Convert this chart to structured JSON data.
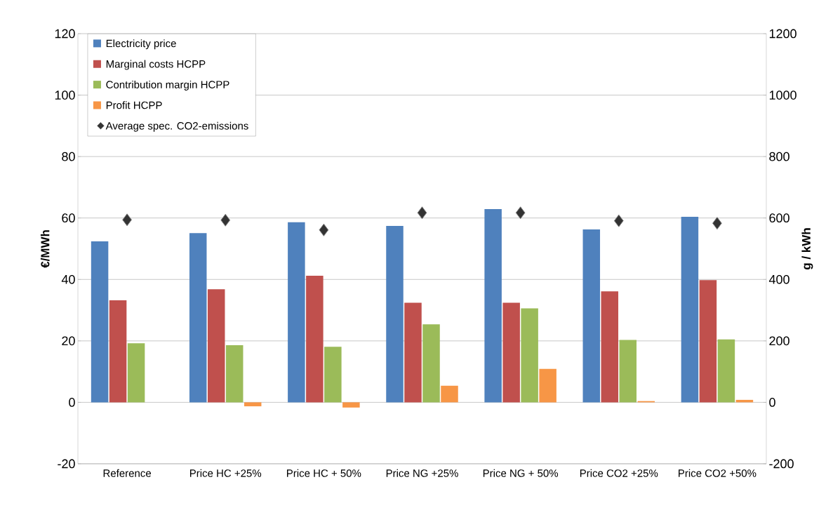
{
  "chart_data": {
    "type": "bar",
    "ylabel": "€/MWh",
    "y2label": "g / kWh",
    "categories": [
      "Reference",
      "Price HC +25%",
      "Price HC + 50%",
      "Price NG +25%",
      "Price NG + 50%",
      "Price CO2 +25%",
      "Price CO2 +50%"
    ],
    "series": [
      {
        "name": "Electricity price",
        "color": "#4f81bd",
        "values": [
          52.4,
          55.1,
          58.6,
          57.4,
          62.9,
          56.3,
          60.4
        ]
      },
      {
        "name": "Marginal costs HCPP",
        "color": "#c0504d",
        "values": [
          33.2,
          36.8,
          41.2,
          32.4,
          32.4,
          36.1,
          39.8
        ]
      },
      {
        "name": "Contribution margin HCPP",
        "color": "#9bbb59",
        "values": [
          19.2,
          18.6,
          18.1,
          25.4,
          30.6,
          20.3,
          20.5
        ]
      },
      {
        "name": "Profit HCPP",
        "color": "#f79646",
        "values": [
          null,
          -1.3,
          -1.7,
          5.4,
          10.9,
          0.4,
          0.8
        ]
      },
      {
        "name": "Average spec. CO2-emissions",
        "type": "scatter",
        "axis": "y2",
        "marker": "diamond",
        "color": "#333333",
        "values": [
          594,
          593,
          561,
          617,
          617,
          591,
          583
        ]
      }
    ],
    "ylim": [
      -20,
      120
    ],
    "yticks": [
      -20,
      0,
      20,
      40,
      60,
      80,
      100,
      120
    ],
    "y2lim": [
      -200,
      1200
    ],
    "y2ticks": [
      -200,
      0,
      200,
      400,
      600,
      800,
      1000,
      1200
    ],
    "grid": "y",
    "legend": "top left"
  }
}
